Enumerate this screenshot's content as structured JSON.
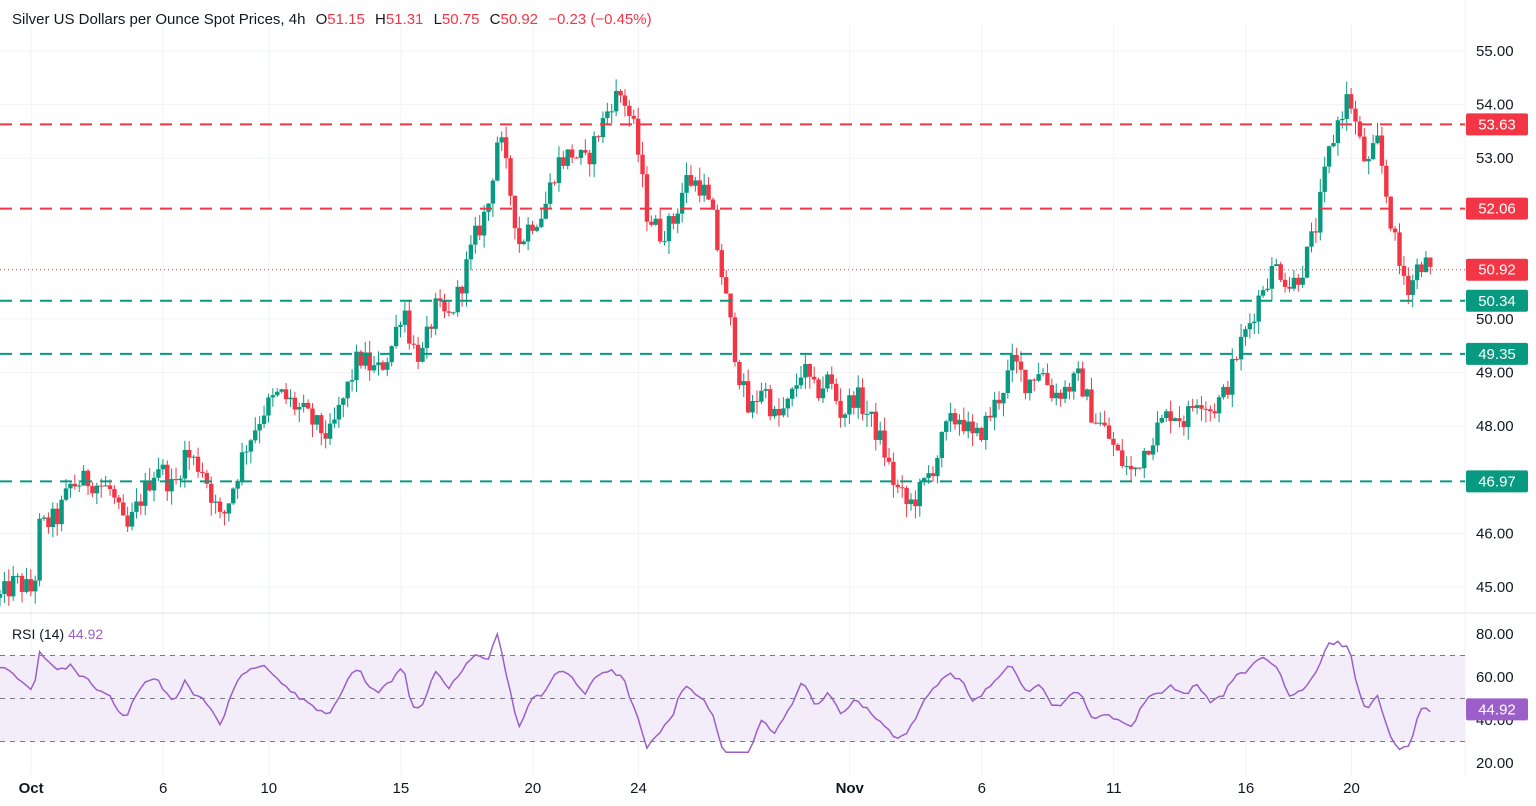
{
  "header": {
    "title": "Silver US Dollars per Ounce Spot Prices, 4h",
    "o_label": "O",
    "o_value": "51.15",
    "h_label": "H",
    "h_value": "51.31",
    "l_label": "L",
    "l_value": "50.75",
    "c_label": "C",
    "c_value": "50.92",
    "change": "−0.23 (−0.45%)"
  },
  "rsi": {
    "label": "RSI (14)",
    "value": "44.92"
  },
  "colors": {
    "up": "#089981",
    "down": "#f23645",
    "rsi_line": "#9c5fc9",
    "rsi_band": "#ede7f6",
    "grid": "#f0f3fa",
    "axis_text": "#131722"
  },
  "chart_data": [
    {
      "type": "candlestick",
      "title": "Silver US Dollars per Ounce Spot Prices, 4h",
      "timeframe": "4h",
      "ylim": [
        44.5,
        55.4
      ],
      "price_ticks": [
        "45.00",
        "46.00",
        "48.00",
        "49.00",
        "50.00",
        "53.00",
        "54.00",
        "55.00"
      ],
      "x_ticks": [
        "Oct",
        "6",
        "10",
        "15",
        "20",
        "24",
        "Nov",
        "6",
        "11",
        "16",
        "20"
      ],
      "x_tick_bold": [
        true,
        false,
        false,
        false,
        false,
        false,
        true,
        false,
        false,
        false,
        false
      ],
      "x_tick_days": [
        0,
        5,
        9,
        14,
        19,
        23,
        31,
        36,
        41,
        46,
        50
      ],
      "x_range_days": [
        -1.18,
        54.3
      ],
      "grid": true,
      "horizontal_levels": [
        {
          "price": 53.63,
          "label": "53.63",
          "kind": "resistance",
          "color": "#f23645",
          "style": "dashed"
        },
        {
          "price": 52.06,
          "label": "52.06",
          "kind": "resistance",
          "color": "#f23645",
          "style": "dashed"
        },
        {
          "price": 50.34,
          "label": "50.34",
          "kind": "support",
          "color": "#089981",
          "style": "dashed"
        },
        {
          "price": 49.35,
          "label": "49.35",
          "kind": "support",
          "color": "#089981",
          "style": "dashed"
        },
        {
          "price": 46.97,
          "label": "46.97",
          "kind": "support",
          "color": "#089981",
          "style": "dashed"
        }
      ],
      "last_price": {
        "price": 50.92,
        "label": "50.92",
        "color": "#f23645",
        "style": "dotted"
      },
      "close_path": [
        {
          "d": -1.18,
          "p": 44.8
        },
        {
          "d": -0.6,
          "p": 45.1
        },
        {
          "d": 0.1,
          "p": 44.9
        },
        {
          "d": 0.3,
          "p": 46.1
        },
        {
          "d": 1.0,
          "p": 46.3
        },
        {
          "d": 1.5,
          "p": 46.9
        },
        {
          "d": 2.2,
          "p": 47.0
        },
        {
          "d": 3.0,
          "p": 46.8
        },
        {
          "d": 3.6,
          "p": 46.0
        },
        {
          "d": 4.1,
          "p": 46.6
        },
        {
          "d": 4.8,
          "p": 47.3
        },
        {
          "d": 5.4,
          "p": 46.8
        },
        {
          "d": 5.8,
          "p": 47.5
        },
        {
          "d": 6.5,
          "p": 47.2
        },
        {
          "d": 7.2,
          "p": 46.2
        },
        {
          "d": 7.6,
          "p": 46.8
        },
        {
          "d": 8.1,
          "p": 47.6
        },
        {
          "d": 8.8,
          "p": 48.3
        },
        {
          "d": 9.4,
          "p": 48.6
        },
        {
          "d": 10.2,
          "p": 48.3
        },
        {
          "d": 10.8,
          "p": 48.0
        },
        {
          "d": 11.3,
          "p": 47.8
        },
        {
          "d": 11.9,
          "p": 48.6
        },
        {
          "d": 12.4,
          "p": 49.3
        },
        {
          "d": 13.1,
          "p": 49.0
        },
        {
          "d": 13.6,
          "p": 49.4
        },
        {
          "d": 14.1,
          "p": 50.3
        },
        {
          "d": 14.4,
          "p": 49.5
        },
        {
          "d": 14.8,
          "p": 49.3
        },
        {
          "d": 15.3,
          "p": 50.2
        },
        {
          "d": 15.8,
          "p": 50.0
        },
        {
          "d": 16.2,
          "p": 50.5
        },
        {
          "d": 16.8,
          "p": 51.5
        },
        {
          "d": 17.3,
          "p": 52.1
        },
        {
          "d": 17.7,
          "p": 53.5
        },
        {
          "d": 18.1,
          "p": 52.5
        },
        {
          "d": 18.5,
          "p": 51.4
        },
        {
          "d": 18.9,
          "p": 51.8
        },
        {
          "d": 19.4,
          "p": 52.0
        },
        {
          "d": 19.9,
          "p": 52.9
        },
        {
          "d": 20.5,
          "p": 53.1
        },
        {
          "d": 21.0,
          "p": 52.9
        },
        {
          "d": 21.5,
          "p": 53.5
        },
        {
          "d": 22.0,
          "p": 54.1
        },
        {
          "d": 22.4,
          "p": 54.2
        },
        {
          "d": 22.9,
          "p": 53.4
        },
        {
          "d": 23.3,
          "p": 52.0
        },
        {
          "d": 23.8,
          "p": 51.6
        },
        {
          "d": 24.3,
          "p": 51.8
        },
        {
          "d": 24.8,
          "p": 52.6
        },
        {
          "d": 25.4,
          "p": 52.5
        },
        {
          "d": 25.8,
          "p": 51.9
        },
        {
          "d": 26.3,
          "p": 50.4
        },
        {
          "d": 26.8,
          "p": 49.0
        },
        {
          "d": 27.2,
          "p": 48.2
        },
        {
          "d": 27.7,
          "p": 48.8
        },
        {
          "d": 28.2,
          "p": 48.1
        },
        {
          "d": 28.7,
          "p": 48.4
        },
        {
          "d": 29.2,
          "p": 49.1
        },
        {
          "d": 29.7,
          "p": 48.6
        },
        {
          "d": 30.2,
          "p": 48.9
        },
        {
          "d": 30.7,
          "p": 48.2
        },
        {
          "d": 31.2,
          "p": 48.6
        },
        {
          "d": 31.7,
          "p": 48.2
        },
        {
          "d": 32.2,
          "p": 47.7
        },
        {
          "d": 32.7,
          "p": 46.9
        },
        {
          "d": 33.2,
          "p": 46.5
        },
        {
          "d": 33.7,
          "p": 46.8
        },
        {
          "d": 34.2,
          "p": 47.3
        },
        {
          "d": 34.7,
          "p": 48.0
        },
        {
          "d": 35.2,
          "p": 48.2
        },
        {
          "d": 35.7,
          "p": 47.7
        },
        {
          "d": 36.2,
          "p": 48.1
        },
        {
          "d": 36.7,
          "p": 48.6
        },
        {
          "d": 37.2,
          "p": 49.2
        },
        {
          "d": 37.7,
          "p": 48.8
        },
        {
          "d": 38.2,
          "p": 49.1
        },
        {
          "d": 38.7,
          "p": 48.6
        },
        {
          "d": 39.2,
          "p": 48.7
        },
        {
          "d": 39.7,
          "p": 48.9
        },
        {
          "d": 40.2,
          "p": 48.2
        },
        {
          "d": 40.7,
          "p": 47.9
        },
        {
          "d": 41.2,
          "p": 47.4
        },
        {
          "d": 41.7,
          "p": 47.1
        },
        {
          "d": 42.2,
          "p": 47.6
        },
        {
          "d": 42.7,
          "p": 48.0
        },
        {
          "d": 43.2,
          "p": 48.3
        },
        {
          "d": 43.7,
          "p": 48.1
        },
        {
          "d": 44.2,
          "p": 48.6
        },
        {
          "d": 44.7,
          "p": 48.3
        },
        {
          "d": 45.2,
          "p": 48.6
        },
        {
          "d": 45.7,
          "p": 49.4
        },
        {
          "d": 46.2,
          "p": 50.0
        },
        {
          "d": 46.7,
          "p": 50.7
        },
        {
          "d": 47.2,
          "p": 51.0
        },
        {
          "d": 47.7,
          "p": 50.6
        },
        {
          "d": 48.2,
          "p": 51.0
        },
        {
          "d": 48.7,
          "p": 51.8
        },
        {
          "d": 49.1,
          "p": 53.0
        },
        {
          "d": 49.5,
          "p": 53.7
        },
        {
          "d": 49.9,
          "p": 54.2
        },
        {
          "d": 50.3,
          "p": 53.3
        },
        {
          "d": 50.6,
          "p": 52.8
        },
        {
          "d": 51.0,
          "p": 53.3
        },
        {
          "d": 51.4,
          "p": 52.1
        },
        {
          "d": 51.8,
          "p": 51.0
        },
        {
          "d": 52.2,
          "p": 50.6
        },
        {
          "d": 52.6,
          "p": 51.1
        },
        {
          "d": 53.0,
          "p": 50.92
        }
      ]
    },
    {
      "type": "line",
      "title": "RSI (14)",
      "ylim": [
        20,
        80
      ],
      "ticks": [
        "20.00",
        "40.00",
        "60.00",
        "80.00"
      ],
      "bands": [
        30,
        50,
        70
      ],
      "last_value": {
        "value": 44.92,
        "label": "44.92"
      },
      "x_range_days": [
        -1.18,
        54.3
      ]
    }
  ]
}
